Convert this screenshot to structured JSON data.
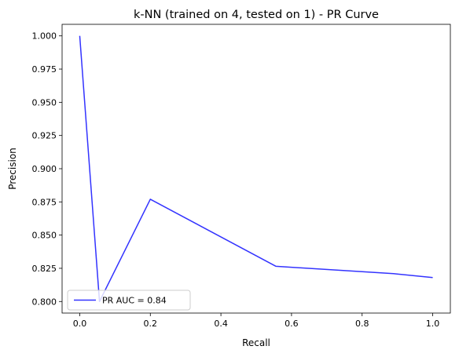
{
  "chart_data": {
    "type": "line",
    "title": "k-NN (trained on 4, tested on 1) -  PR Curve",
    "xlabel": "Recall",
    "ylabel": "Precision",
    "xlim": [
      -0.05,
      1.05
    ],
    "ylim": [
      0.7913,
      1.0087
    ],
    "xticks": [
      0.0,
      0.2,
      0.4,
      0.6,
      0.8,
      1.0
    ],
    "xtick_labels": [
      "0.0",
      "0.2",
      "0.4",
      "0.6",
      "0.8",
      "1.0"
    ],
    "yticks": [
      0.8,
      0.825,
      0.85,
      0.875,
      0.9,
      0.925,
      0.95,
      0.975,
      1.0
    ],
    "ytick_labels": [
      "0.800",
      "0.825",
      "0.850",
      "0.875",
      "0.900",
      "0.925",
      "0.950",
      "0.975",
      "1.000"
    ],
    "grid": false,
    "legend_location": "lower left",
    "series": [
      {
        "name": "PR AUC = 0.84",
        "color": "#3333ff",
        "x": [
          0.0,
          0.056,
          0.2,
          0.556,
          0.889,
          1.0
        ],
        "y": [
          1.0,
          0.8,
          0.877,
          0.8265,
          0.821,
          0.818
        ]
      }
    ]
  }
}
